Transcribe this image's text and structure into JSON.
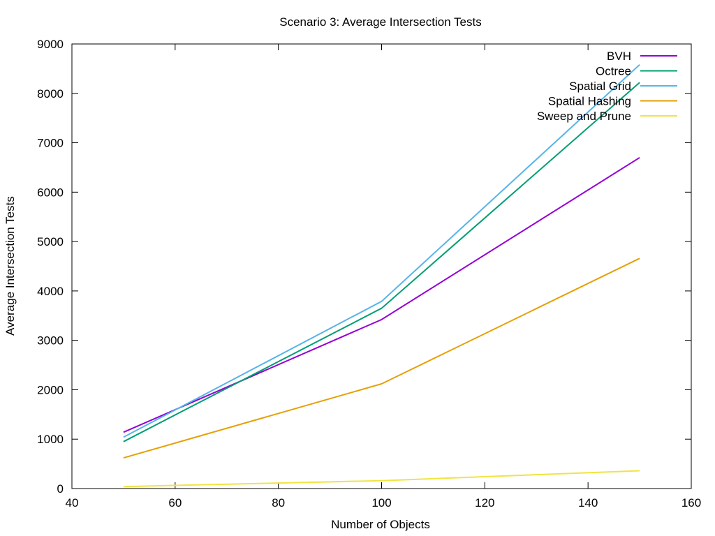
{
  "chart_data": {
    "type": "line",
    "title": "Scenario 3: Average Intersection Tests",
    "xlabel": "Number of Objects",
    "ylabel": "Average Intersection Tests",
    "xlim": [
      40,
      160
    ],
    "ylim": [
      0,
      9000
    ],
    "xticks": [
      40,
      60,
      80,
      100,
      120,
      140,
      160
    ],
    "yticks": [
      0,
      1000,
      2000,
      3000,
      4000,
      5000,
      6000,
      7000,
      8000,
      9000
    ],
    "grid": false,
    "legend_position": "top-right",
    "x": [
      50,
      100,
      150
    ],
    "series": [
      {
        "name": "BVH",
        "color": "#9400d3",
        "values": [
          1140,
          3420,
          6700
        ]
      },
      {
        "name": "Octree",
        "color": "#009e73",
        "values": [
          950,
          3650,
          8220
        ]
      },
      {
        "name": "Spatial Grid",
        "color": "#56b4e9",
        "values": [
          1040,
          3790,
          8580
        ]
      },
      {
        "name": "Spatial Hashing",
        "color": "#e69f00",
        "values": [
          620,
          2120,
          4660
        ]
      },
      {
        "name": "Sweep and Prune",
        "color": "#f0e442",
        "values": [
          40,
          160,
          360
        ]
      }
    ]
  }
}
